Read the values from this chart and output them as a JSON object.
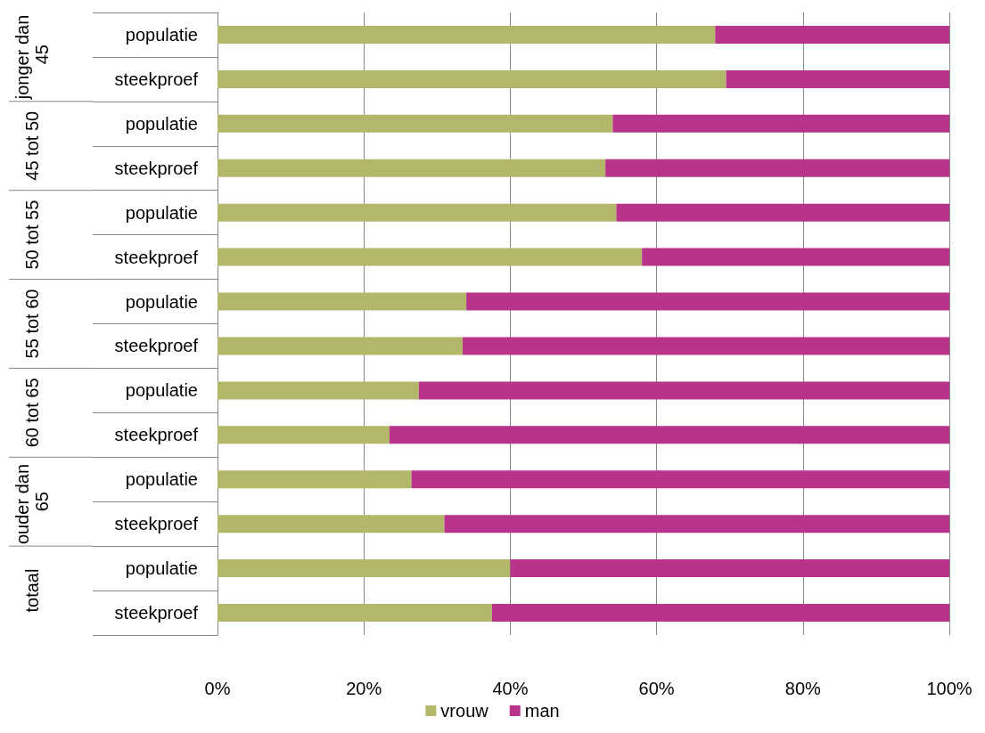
{
  "chart_data": {
    "type": "bar",
    "orientation": "horizontal",
    "stacked": true,
    "categories": [
      "populatie",
      "steekproef",
      "populatie",
      "steekproef",
      "populatie",
      "steekproef",
      "populatie",
      "steekproef",
      "populatie",
      "steekproef",
      "populatie",
      "steekproef",
      "populatie",
      "steekproef"
    ],
    "series": [
      {
        "name": "vrouw",
        "color": "#b3b76a",
        "values": [
          68,
          69.5,
          54,
          53,
          54.5,
          58,
          34,
          33.5,
          27.5,
          23.5,
          26.5,
          31,
          40,
          37.5
        ]
      },
      {
        "name": "man",
        "color": "#b8348a",
        "values": [
          32,
          30.5,
          46,
          47,
          45.5,
          42,
          66,
          66.5,
          72.5,
          76.5,
          73.5,
          69,
          60,
          62.5
        ]
      }
    ],
    "annotations": [
      "jonger dan 45",
      "45 tot 50",
      "50 tot 55",
      "55 tot 60",
      "60 tot 65",
      "ouder dan 65",
      "totaal"
    ],
    "xlim": [
      0,
      100
    ],
    "xticks": [
      {
        "value": 0,
        "label": "0%"
      },
      {
        "value": 20,
        "label": "20%"
      },
      {
        "value": 40,
        "label": "40%"
      },
      {
        "value": 60,
        "label": "60%"
      },
      {
        "value": 80,
        "label": "80%"
      },
      {
        "value": 100,
        "label": "100%"
      }
    ],
    "grid": "x",
    "legend": "bottom"
  }
}
